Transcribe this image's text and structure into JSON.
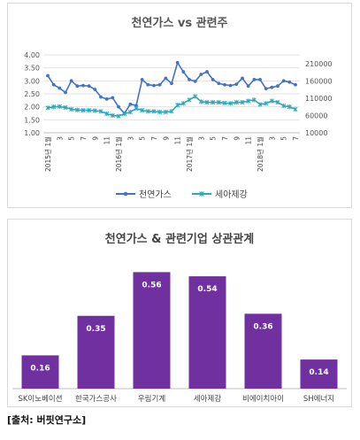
{
  "source": "[출처: 버핏연구소]",
  "chart_data": [
    {
      "type": "line",
      "title": "천연가스 vs 관련주",
      "y_left": {
        "ticks": [
          "1.00",
          "1.50",
          "2.00",
          "2.50",
          "3.00",
          "3.50",
          "4.00"
        ],
        "range": [
          1.0,
          4.0
        ]
      },
      "y_right": {
        "ticks": [
          "10000",
          "60000",
          "110000",
          "160000",
          "210000"
        ],
        "range": [
          10000,
          235000
        ]
      },
      "x_tick_labels": [
        "2015년 1월",
        "3",
        "5",
        "7",
        "9",
        "11",
        "2016년 1월",
        "3",
        "5",
        "7",
        "9",
        "11",
        "2017년 1월",
        "3",
        "5",
        "7",
        "9",
        "11",
        "2018년 1월",
        "3",
        "5",
        "7"
      ],
      "x_count": 43,
      "legend_position": "bottom",
      "series": [
        {
          "name": "천연가스",
          "axis": "left",
          "color": "#4472C4",
          "values": [
            3.2,
            2.85,
            2.72,
            2.55,
            3.0,
            2.8,
            2.82,
            2.8,
            2.67,
            2.38,
            2.3,
            2.35,
            2.0,
            1.75,
            2.1,
            2.05,
            3.05,
            2.85,
            2.82,
            2.85,
            3.1,
            2.9,
            3.7,
            3.35,
            3.05,
            2.98,
            3.25,
            3.35,
            3.05,
            2.9,
            2.85,
            2.82,
            2.87,
            3.1,
            2.8,
            3.05,
            3.05,
            2.7,
            2.75,
            2.8,
            3.0,
            2.95,
            2.85
          ]
        },
        {
          "name": "세아제강",
          "axis": "right",
          "color": "#2EA8B8",
          "values": [
            82000,
            85000,
            86000,
            83000,
            78000,
            76000,
            75000,
            75000,
            74000,
            72000,
            65000,
            60000,
            58000,
            65000,
            70000,
            80000,
            75000,
            72000,
            72000,
            70000,
            70000,
            72000,
            90000,
            95000,
            105000,
            115000,
            100000,
            98000,
            98000,
            98000,
            96000,
            95000,
            98000,
            98000,
            102000,
            105000,
            92000,
            95000,
            102000,
            98000,
            88000,
            85000,
            78000
          ]
        }
      ]
    },
    {
      "type": "bar",
      "title": "천연가스 & 관련기업 상관관계",
      "categories": [
        "SK이노베이션",
        "한국가스공사",
        "우림기계",
        "세아제강",
        "비에이치아이",
        "SH에너지"
      ],
      "values": [
        0.16,
        0.35,
        0.56,
        0.54,
        0.36,
        0.14
      ],
      "value_labels": [
        "0.16",
        "0.35",
        "0.56",
        "0.54",
        "0.36",
        "0.14"
      ],
      "color": "#7030A0"
    }
  ]
}
